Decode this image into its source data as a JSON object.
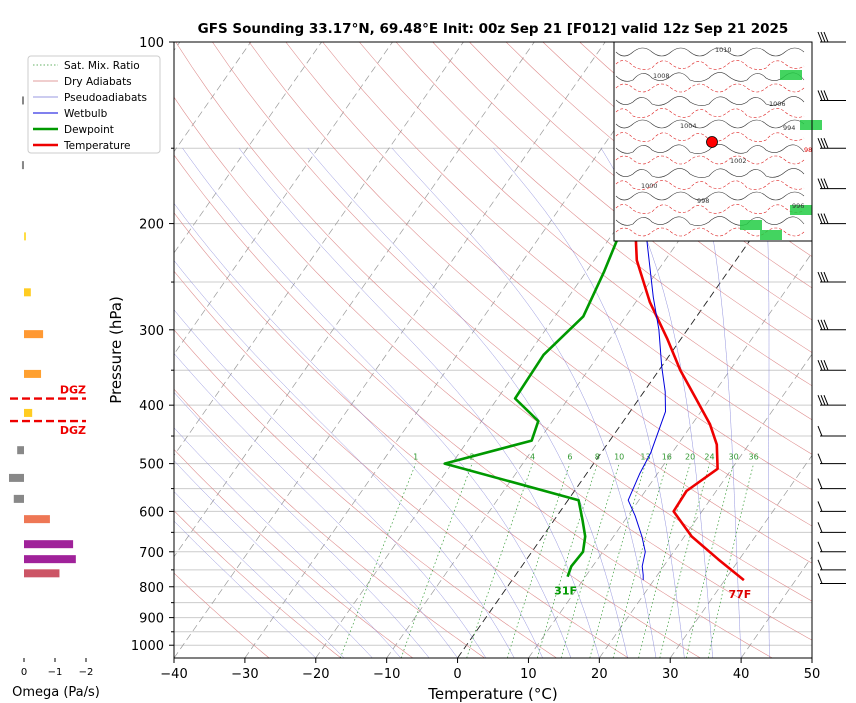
{
  "chart_data": {
    "type": "line",
    "title": "GFS Sounding 33.17°N, 69.48°E Init: 00z Sep 21 [F012] valid 12z Sep 21 2025",
    "xlabel": "Temperature (°C)",
    "ylabel": "Pressure (hPa)",
    "xlim": [
      -40,
      50
    ],
    "ylim": [
      1050,
      100
    ],
    "yscale": "log",
    "grid": true,
    "legend_position": "top-left",
    "x_ticks": [
      "−40",
      "−30",
      "−20",
      "−10",
      "0",
      "10",
      "20",
      "30",
      "40",
      "50"
    ],
    "y_ticks": [
      "100",
      "200",
      "300",
      "400",
      "500",
      "600",
      "700",
      "800",
      "900",
      "1000"
    ],
    "legend": [
      "Sat. Mix. Ratio",
      "Dry Adiabats",
      "Pseudoadiabats",
      "Wetbulb",
      "Dewpoint",
      "Temperature"
    ],
    "series": [
      {
        "name": "Temperature",
        "color": "#ee0000",
        "points": [
          [
            32.7,
            780
          ],
          [
            27,
            720
          ],
          [
            21,
            660
          ],
          [
            16,
            600
          ],
          [
            15.8,
            555
          ],
          [
            18,
            510
          ],
          [
            15.5,
            465
          ],
          [
            12.5,
            430
          ],
          [
            8,
            390
          ],
          [
            3,
            350
          ],
          [
            -2,
            310
          ],
          [
            -8,
            270
          ],
          [
            -14,
            230
          ],
          [
            -20,
            185
          ],
          [
            -23,
            165
          ],
          [
            -25,
            130
          ],
          [
            -27,
            105
          ]
        ]
      },
      {
        "name": "Dewpoint",
        "color": "#009900",
        "points": [
          [
            7.5,
            770
          ],
          [
            7,
            740
          ],
          [
            7.2,
            700
          ],
          [
            6,
            660
          ],
          [
            4,
            620
          ],
          [
            1.5,
            575
          ],
          [
            -21,
            500
          ],
          [
            -11,
            458
          ],
          [
            -12,
            425
          ],
          [
            -17.5,
            390
          ],
          [
            -17.8,
            330
          ],
          [
            -16,
            285
          ],
          [
            -17.5,
            240
          ],
          [
            -20,
            190
          ],
          [
            -21,
            165
          ],
          [
            -22,
            110
          ],
          [
            -22,
            100
          ]
        ]
      },
      {
        "name": "Wetbulb",
        "color": "#0000dd",
        "points": [
          [
            18.5,
            780
          ],
          [
            18,
            765
          ],
          [
            17,
            740
          ],
          [
            16,
            700
          ],
          [
            14,
            660
          ],
          [
            11,
            610
          ],
          [
            8.5,
            575
          ],
          [
            7.5,
            520
          ],
          [
            7,
            480
          ],
          [
            5,
            410
          ],
          [
            3,
            380
          ],
          [
            0,
            345
          ],
          [
            -4,
            300
          ],
          [
            -8,
            265
          ],
          [
            -15,
            210
          ],
          [
            -20,
            180
          ]
        ]
      }
    ],
    "mixing_ratio_labels": [
      "1",
      "2",
      "4",
      "6",
      "8",
      "10",
      "13",
      "16",
      "20",
      "24",
      "30",
      "36"
    ],
    "surface_labels": {
      "dewpoint": "31F",
      "temperature": "77F"
    },
    "omega_panel": {
      "xlabel": "Omega (Pa/s)",
      "x_ticks": [
        "0",
        "−1",
        "−2"
      ],
      "dgz_label": "DGZ",
      "bars": [
        {
          "p": 125,
          "v": 0.02,
          "color": "#888888"
        },
        {
          "p": 160,
          "v": 0.03,
          "color": "#888888"
        },
        {
          "p": 210,
          "v": -0.02,
          "color": "#ffdd44"
        },
        {
          "p": 260,
          "v": -0.1,
          "color": "#ffcc22"
        },
        {
          "p": 305,
          "v": -0.28,
          "color": "#ff9933"
        },
        {
          "p": 355,
          "v": -0.25,
          "color": "#ffa030"
        },
        {
          "p": 412,
          "v": -0.12,
          "color": "#ffcc22"
        },
        {
          "p": 475,
          "v": 0.1,
          "color": "#888888"
        },
        {
          "p": 528,
          "v": 0.22,
          "color": "#888888"
        },
        {
          "p": 572,
          "v": 0.15,
          "color": "#888888"
        },
        {
          "p": 618,
          "v": -0.38,
          "color": "#ee7755"
        },
        {
          "p": 680,
          "v": -0.72,
          "color": "#a0229a"
        },
        {
          "p": 720,
          "v": -0.76,
          "color": "#a0229a"
        },
        {
          "p": 760,
          "v": -0.52,
          "color": "#cc5566"
        }
      ],
      "dgz": [
        390,
        425
      ]
    },
    "wind_barbs": [
      100,
      125,
      150,
      175,
      200,
      250,
      300,
      350,
      400,
      450,
      500,
      550,
      600,
      650,
      700,
      750,
      790
    ],
    "inset_map": {
      "labels": [
        "1010",
        "1008",
        "1006",
        "1004",
        "1002",
        "1000",
        "998",
        "996",
        "994",
        "98"
      ]
    }
  }
}
